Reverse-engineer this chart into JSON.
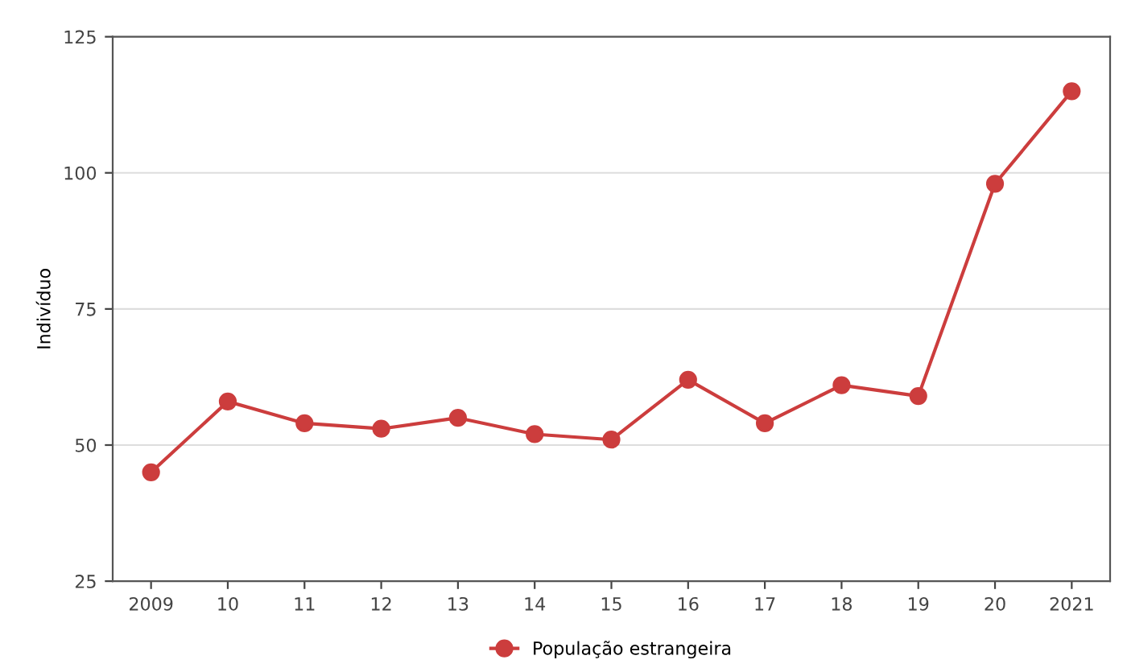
{
  "chart_data": {
    "type": "line",
    "ylabel": "Indivíduo",
    "categories": [
      "2009",
      "10",
      "11",
      "12",
      "13",
      "14",
      "15",
      "16",
      "17",
      "18",
      "19",
      "20",
      "2021"
    ],
    "series": [
      {
        "name": "População estrangeira",
        "color": "#cc3d3d",
        "values": [
          45,
          58,
          54,
          53,
          55,
          52,
          51,
          62,
          54,
          61,
          59,
          98,
          115
        ]
      }
    ],
    "ylim": [
      25,
      125
    ],
    "yticks": [
      25,
      50,
      75,
      100,
      125
    ],
    "grid": "y",
    "legend": "bottom",
    "marker": "circle",
    "line_style": "solid"
  }
}
